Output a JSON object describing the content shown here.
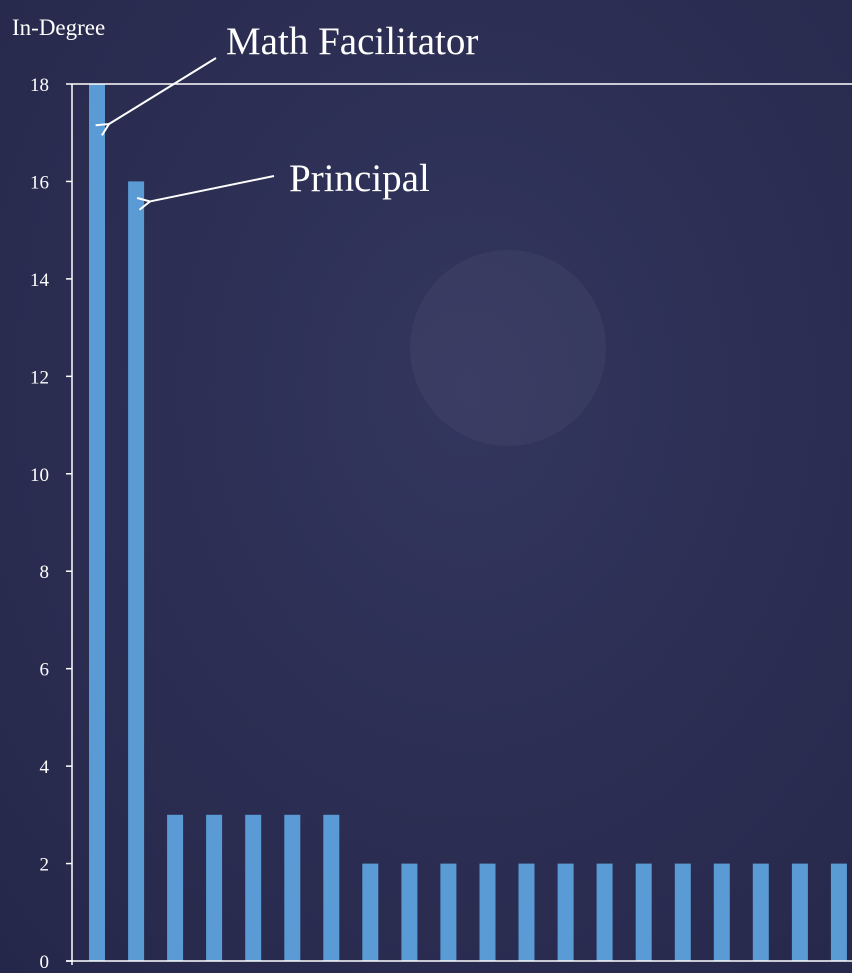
{
  "chart_data": {
    "type": "bar",
    "title": "",
    "xlabel": "",
    "ylabel": "In-Degree",
    "ylim": [
      0,
      18
    ],
    "yticks": [
      0,
      2,
      4,
      6,
      8,
      10,
      12,
      14,
      16,
      18
    ],
    "grid": false,
    "legend": "none",
    "values": [
      18,
      16,
      3,
      3,
      3,
      3,
      3,
      2,
      2,
      2,
      2,
      2,
      2,
      2,
      2,
      2,
      2,
      2,
      2,
      2
    ],
    "annotations": [
      {
        "text": "Math Facilitator",
        "bar_index": 0
      },
      {
        "text": "Principal",
        "bar_index": 1
      }
    ],
    "colors": {
      "bar": "#5b9bd5",
      "axis": "#ffffff",
      "background": "#2b2d52"
    }
  }
}
